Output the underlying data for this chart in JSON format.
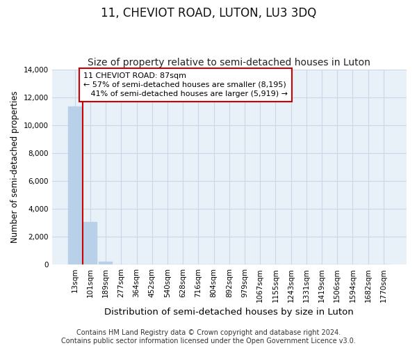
{
  "title": "11, CHEVIOT ROAD, LUTON, LU3 3DQ",
  "subtitle": "Size of property relative to semi-detached houses in Luton",
  "xlabel": "Distribution of semi-detached houses by size in Luton",
  "ylabel": "Number of semi-detached properties",
  "footer_line1": "Contains HM Land Registry data © Crown copyright and database right 2024.",
  "footer_line2": "Contains public sector information licensed under the Open Government Licence v3.0.",
  "bar_labels": [
    "13sqm",
    "101sqm",
    "189sqm",
    "277sqm",
    "364sqm",
    "452sqm",
    "540sqm",
    "628sqm",
    "716sqm",
    "804sqm",
    "892sqm",
    "979sqm",
    "1067sqm",
    "1155sqm",
    "1243sqm",
    "1331sqm",
    "1419sqm",
    "1506sqm",
    "1594sqm",
    "1682sqm",
    "1770sqm"
  ],
  "bar_values": [
    11350,
    3050,
    200,
    0,
    0,
    0,
    0,
    0,
    0,
    0,
    0,
    0,
    0,
    0,
    0,
    0,
    0,
    0,
    0,
    0,
    0
  ],
  "bar_color": "#b8d0e8",
  "bar_edge_color": "#b8d0e8",
  "grid_color": "#c8d8e8",
  "background_color": "#e8f0f8",
  "property_line_x": 0.5,
  "property_line_color": "#cc0000",
  "annotation_line1": "11 CHEVIOT ROAD: 87sqm",
  "annotation_line2": "← 57% of semi-detached houses are smaller (8,195)",
  "annotation_line3": "   41% of semi-detached houses are larger (5,919) →",
  "annotation_box_color": "#ffffff",
  "annotation_border_color": "#cc0000",
  "ylim": [
    0,
    14000
  ],
  "yticks": [
    0,
    2000,
    4000,
    6000,
    8000,
    10000,
    12000,
    14000
  ],
  "title_fontsize": 12,
  "subtitle_fontsize": 10,
  "xlabel_fontsize": 9.5,
  "ylabel_fontsize": 8.5,
  "tick_fontsize": 7.5,
  "annotation_fontsize": 8,
  "footer_fontsize": 7
}
